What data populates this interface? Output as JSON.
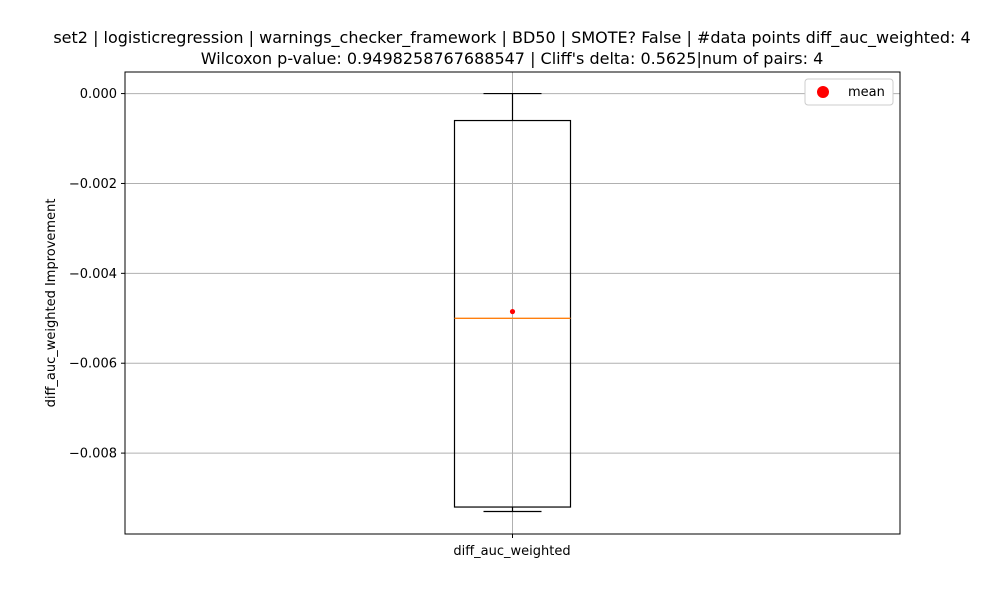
{
  "chart_data": {
    "type": "box",
    "title_line1": "set2 | logisticregression | warnings_checker_framework | BD50 | SMOTE? False | #data points diff_auc_weighted: 4",
    "title_line2": "Wilcoxon p-value: 0.9498258767688547 | Cliff's delta: 0.5625|num of pairs: 4",
    "xlabel": "",
    "ylabel": "diff_auc_weighted Improvement",
    "categories": [
      "diff_auc_weighted"
    ],
    "box": {
      "whisker_high": 0.0,
      "q3": -0.0006,
      "median": -0.005,
      "mean": -0.00485,
      "q1": -0.0092,
      "whisker_low": -0.0093
    },
    "ylim": [
      -0.0098,
      0.00048
    ],
    "yticks": [
      0.0,
      -0.002,
      -0.004,
      -0.006,
      -0.008
    ],
    "ytick_labels": [
      "0.000",
      "−0.002",
      "−0.004",
      "−0.006",
      "−0.008"
    ],
    "grid": true,
    "legend": {
      "placement": "upper-right",
      "entries": [
        {
          "label": "mean",
          "color": "#ff0000"
        }
      ]
    },
    "colors": {
      "box": "#000000",
      "median": "#ff7f0e",
      "mean": "#ff0000",
      "grid": "#b0b0b0"
    }
  }
}
